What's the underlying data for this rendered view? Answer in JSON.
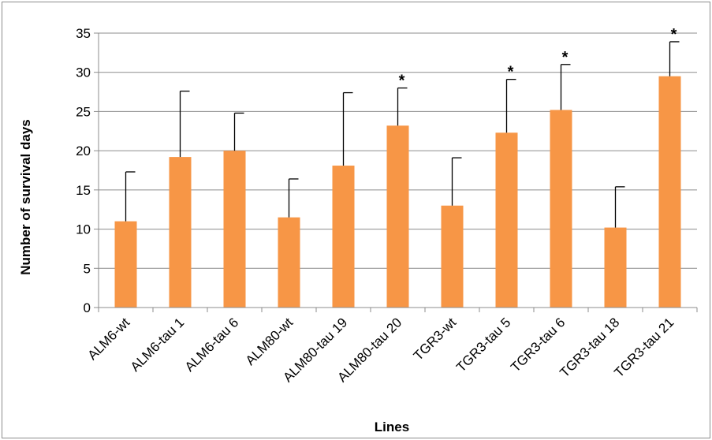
{
  "chart_data": {
    "type": "bar",
    "title": "",
    "xlabel": "Lines",
    "ylabel": "Number of survival days",
    "ylim": [
      0,
      35
    ],
    "yticks": [
      0,
      5,
      10,
      15,
      20,
      25,
      30,
      35
    ],
    "grid": true,
    "legend": "none",
    "bar_color": "#F79646",
    "categories": [
      "ALM6-wt",
      "ALM6-tau 1",
      "ALM6-tau 6",
      "ALM80-wt",
      "ALM80-tau 19",
      "ALM80-tau 20",
      "TGR3-wt",
      "TGR3-tau 5",
      "TGR3-tau 6",
      "TGR3-tau 18",
      "TGR3-tau 21"
    ],
    "values": [
      11.0,
      19.2,
      20.0,
      11.5,
      18.1,
      23.2,
      13.0,
      22.3,
      25.2,
      10.2,
      29.5
    ],
    "error_upper": [
      6.3,
      8.4,
      4.8,
      4.9,
      9.3,
      4.8,
      6.1,
      6.8,
      5.8,
      5.2,
      4.4
    ],
    "significance_marker": "*",
    "significant": [
      false,
      false,
      false,
      false,
      false,
      true,
      false,
      true,
      true,
      false,
      true
    ]
  }
}
